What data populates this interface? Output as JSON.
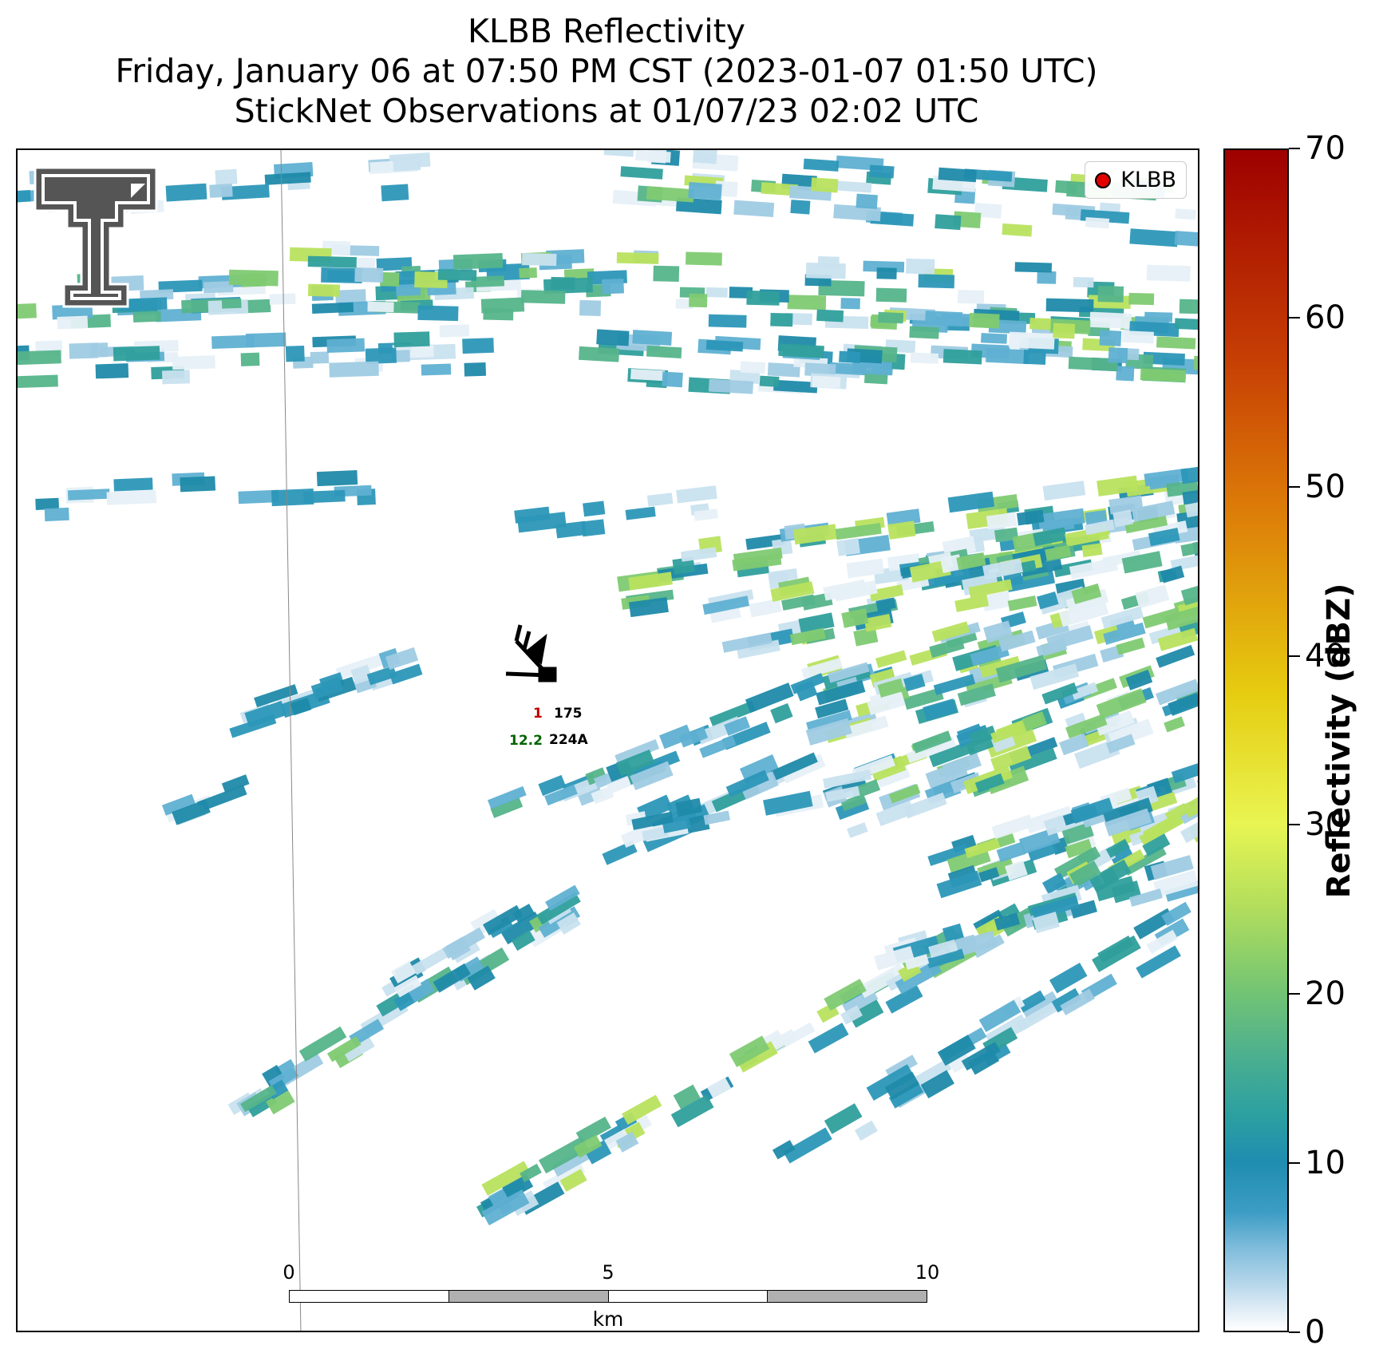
{
  "title": {
    "line1": "KLBB Reflectivity",
    "line2": "Friday, January 06 at 07:50 PM CST (2023-01-07 01:50 UTC)",
    "line3": "StickNet Observations at 01/07/23 02:02 UTC"
  },
  "legend": {
    "label": "KLBB",
    "marker_color": "#e00000"
  },
  "station": {
    "id": "224A",
    "value_red": "1",
    "value_black": "175",
    "value_green": "12.2"
  },
  "scalebar": {
    "ticks": [
      "0",
      "5",
      "10"
    ],
    "unit": "km"
  },
  "colorbar": {
    "label": "Reflectivity (dBZ)",
    "ticks": [
      "0",
      "10",
      "20",
      "30",
      "40",
      "50",
      "60",
      "70"
    ],
    "min": 0,
    "max": 70
  },
  "logo": {
    "name": "double-t-logo"
  }
}
